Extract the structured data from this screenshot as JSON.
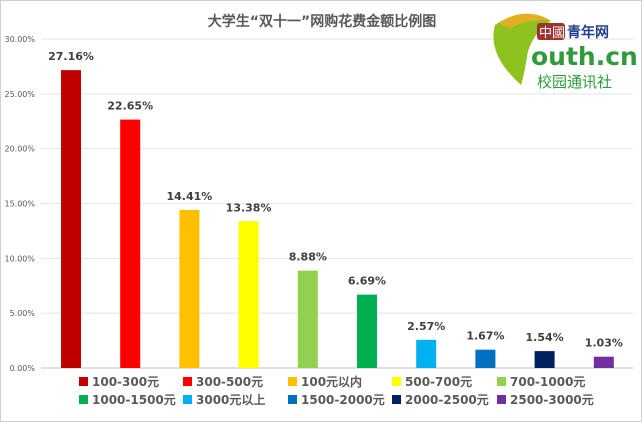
{
  "chart_data": {
    "type": "bar",
    "title": "大学生“双十一”网购花费金额比例图",
    "categories": [
      "100-300元",
      "300-500元",
      "100元以内",
      "500-700元",
      "700-1000元",
      "1000-1500元",
      "3000元以上",
      "1500-2000元",
      "2000-2500元",
      "2500-3000元"
    ],
    "values": [
      27.16,
      22.65,
      14.41,
      13.38,
      8.88,
      6.69,
      2.57,
      1.67,
      1.54,
      1.03
    ],
    "data_labels": [
      "27.16%",
      "22.65%",
      "14.41%",
      "13.38%",
      "8.88%",
      "6.69%",
      "2.57%",
      "1.67%",
      "1.54%",
      "1.03%"
    ],
    "colors": [
      "#C00000",
      "#FF0000",
      "#FFC000",
      "#FFFF00",
      "#92D050",
      "#00B050",
      "#00B0F0",
      "#0070C0",
      "#002060",
      "#7030A0"
    ],
    "ylim": [
      0,
      30
    ],
    "yticks": [
      0,
      5,
      10,
      15,
      20,
      25,
      30
    ],
    "ytick_labels": [
      "0.00%",
      "5.00%",
      "10.00%",
      "15.00%",
      "20.00%",
      "25.00%",
      "30.00%"
    ],
    "grid": true,
    "legend": "bottom",
    "xlabel": "",
    "ylabel": ""
  },
  "logo": {
    "line1": "中國",
    "line1b": "青年网",
    "line2": "outh.cn",
    "line3": "校园通讯社"
  }
}
